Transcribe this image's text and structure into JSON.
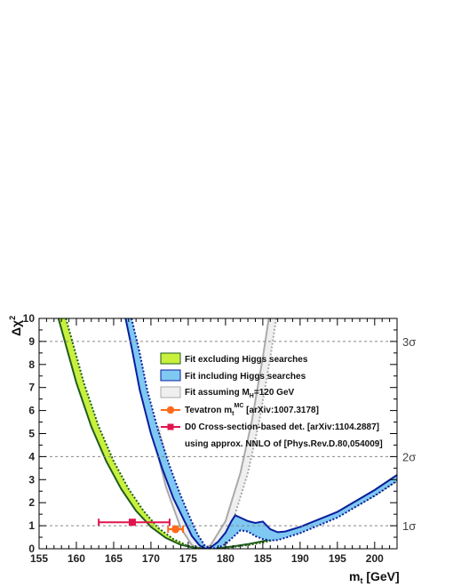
{
  "chart_data": {
    "type": "line",
    "xlabel": "m_t [GeV]",
    "xlabel_main": "m",
    "xlabel_sub": "t",
    "xlabel_unit": " [GeV]",
    "ylabel": "Δχ²",
    "ylabel_main": "Δχ",
    "ylabel_sup": "2",
    "xlim": [
      155,
      203
    ],
    "ylim": [
      0,
      10
    ],
    "xticks": [
      "155",
      "160",
      "165",
      "170",
      "175",
      "180",
      "185",
      "190",
      "195",
      "200"
    ],
    "yticks": [
      "0",
      "1",
      "2",
      "3",
      "4",
      "5",
      "6",
      "7",
      "8",
      "9",
      "10"
    ],
    "grid": false,
    "sigma_lines": [
      {
        "y": 1,
        "label": "1σ"
      },
      {
        "y": 4,
        "label": "2σ"
      },
      {
        "y": 9,
        "label": "3σ"
      }
    ],
    "legend_position": "top-center",
    "legend": [
      {
        "key": "green_band",
        "text": "Fit excluding Higgs searches"
      },
      {
        "key": "blue_band",
        "text": "Fit including Higgs searches"
      },
      {
        "key": "grey_band",
        "text": "Fit assuming M_H=120 GeV",
        "main": "Fit assuming M",
        "sub": "H",
        "rest": "=120 GeV"
      },
      {
        "key": "orange_point",
        "text": "Tevatron m_t^MC [arXiv:1007.3178]",
        "main": "Tevatron m",
        "sub": "t",
        "sup": "MC",
        "rest": " [arXiv:1007.3178]"
      },
      {
        "key": "red_point",
        "text": "D0 Cross-section-based det. [arXiv:1104.2887]"
      },
      {
        "key": "note",
        "text": "using approx. NNLO of [Phys.Rev.D.80,054009]"
      }
    ],
    "series": [
      {
        "key": "green_band",
        "color": "#1f5c1f",
        "fill": "#c8f03c",
        "solid": [
          [
            157.6,
            10
          ],
          [
            160,
            7.2
          ],
          [
            162,
            5.3
          ],
          [
            164,
            3.8
          ],
          [
            166,
            2.6
          ],
          [
            168,
            1.65
          ],
          [
            170,
            0.95
          ],
          [
            172,
            0.47
          ],
          [
            174,
            0.17
          ],
          [
            176,
            0.03
          ],
          [
            177.5,
            0.0
          ],
          [
            179,
            0.03
          ],
          [
            181,
            0.1
          ],
          [
            183,
            0.2
          ],
          [
            185,
            0.33
          ],
          [
            187,
            0.5
          ],
          [
            190,
            0.85
          ],
          [
            195,
            1.6
          ],
          [
            200,
            2.55
          ],
          [
            203,
            3.2
          ]
        ],
        "dotted": [
          [
            158.6,
            10
          ],
          [
            161,
            7.2
          ],
          [
            163,
            5.3
          ],
          [
            165,
            3.8
          ],
          [
            167,
            2.6
          ],
          [
            169,
            1.65
          ],
          [
            171,
            0.9
          ],
          [
            173,
            0.42
          ],
          [
            175,
            0.12
          ],
          [
            177,
            0.01
          ],
          [
            177.7,
            0.0
          ],
          [
            179,
            0.02
          ],
          [
            181,
            0.08
          ],
          [
            183,
            0.16
          ],
          [
            185,
            0.27
          ],
          [
            187,
            0.42
          ],
          [
            190,
            0.72
          ],
          [
            195,
            1.4
          ],
          [
            200,
            2.3
          ],
          [
            203,
            2.95
          ]
        ]
      },
      {
        "key": "blue_band",
        "color": "#0a1e9e",
        "fill": "#7ec8f2",
        "solid": [
          [
            166.6,
            10
          ],
          [
            167.5,
            8.6
          ],
          [
            168.5,
            6.9
          ],
          [
            170,
            5.0
          ],
          [
            171.5,
            3.5
          ],
          [
            173,
            2.2
          ],
          [
            174.5,
            1.2
          ],
          [
            175.5,
            0.55
          ],
          [
            176.5,
            0.15
          ],
          [
            177.3,
            0.0
          ],
          [
            178,
            0.05
          ],
          [
            179,
            0.3
          ],
          [
            180,
            0.7
          ],
          [
            180.8,
            1.2
          ],
          [
            181.3,
            1.45
          ],
          [
            182,
            1.35
          ],
          [
            183,
            1.2
          ],
          [
            184,
            1.12
          ],
          [
            185,
            1.18
          ],
          [
            186,
            0.85
          ],
          [
            187,
            0.72
          ],
          [
            188,
            0.75
          ],
          [
            190,
            0.95
          ],
          [
            195,
            1.6
          ],
          [
            200,
            2.55
          ],
          [
            203,
            3.2
          ]
        ],
        "dotted": [
          [
            167.4,
            10
          ],
          [
            168.5,
            8.5
          ],
          [
            169.5,
            6.9
          ],
          [
            171,
            5.1
          ],
          [
            172.5,
            3.6
          ],
          [
            174,
            2.3
          ],
          [
            175.3,
            1.3
          ],
          [
            176.3,
            0.6
          ],
          [
            177.2,
            0.15
          ],
          [
            178,
            0.0
          ],
          [
            179,
            0.05
          ],
          [
            180,
            0.2
          ],
          [
            181,
            0.5
          ],
          [
            182,
            0.8
          ],
          [
            183,
            0.75
          ],
          [
            184,
            0.55
          ],
          [
            185,
            0.42
          ],
          [
            186,
            0.36
          ],
          [
            187,
            0.38
          ],
          [
            188,
            0.47
          ],
          [
            190,
            0.68
          ],
          [
            195,
            1.35
          ],
          [
            200,
            2.3
          ],
          [
            203,
            2.95
          ]
        ]
      },
      {
        "key": "grey_band",
        "color": "#aaaaaa",
        "fill": "#efefef",
        "solid": [
          [
            170,
            5.3
          ],
          [
            172,
            2.7
          ],
          [
            174,
            0.9
          ],
          [
            175.5,
            0.15
          ],
          [
            176.7,
            0.0
          ],
          [
            178,
            0.15
          ],
          [
            180,
            1.2
          ],
          [
            182,
            3.3
          ],
          [
            183.5,
            5.5
          ],
          [
            185,
            8.3
          ],
          [
            185.8,
            10
          ]
        ],
        "dotted": [
          [
            171,
            5.3
          ],
          [
            173,
            2.7
          ],
          [
            175,
            0.9
          ],
          [
            176.5,
            0.15
          ],
          [
            177.7,
            0.0
          ],
          [
            179,
            0.15
          ],
          [
            181,
            1.2
          ],
          [
            183,
            3.3
          ],
          [
            184.5,
            5.5
          ],
          [
            186,
            8.3
          ],
          [
            186.8,
            10
          ]
        ]
      }
    ],
    "points": [
      {
        "key": "orange_point",
        "color": "#ff6a1a",
        "marker": "circle",
        "x": 173.3,
        "y": 0.85,
        "xerr": [
          172.3,
          174.3
        ]
      },
      {
        "key": "red_point",
        "color": "#e0144c",
        "marker": "square",
        "x": 167.5,
        "y": 1.15,
        "xerr": [
          163.0,
          172.5
        ]
      }
    ]
  }
}
